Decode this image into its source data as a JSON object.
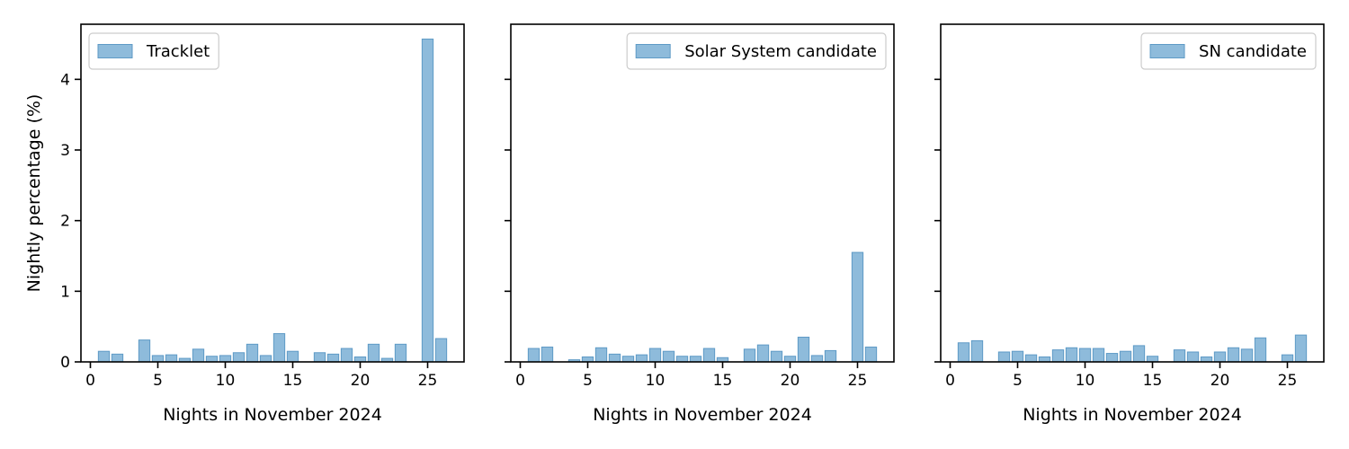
{
  "chart_data": [
    {
      "type": "bar",
      "xlabel": "Nights in November 2024",
      "ylabel": "Nightly percentage (%)",
      "xlim": [
        -0.7,
        27.7
      ],
      "ylim": [
        0,
        4.78
      ],
      "xticks": [
        0,
        5,
        10,
        15,
        20,
        25
      ],
      "yticks": [
        0,
        1,
        2,
        3,
        4
      ],
      "legend": "top-left",
      "color": "#8ebbdb",
      "edge_color": "#5e9ac6",
      "series": [
        {
          "name": "Tracklet",
          "x": [
            1,
            2,
            4,
            5,
            6,
            7,
            8,
            9,
            10,
            11,
            12,
            13,
            14,
            15,
            17,
            18,
            19,
            20,
            21,
            22,
            23,
            25,
            26
          ],
          "values": [
            0.15,
            0.11,
            0.31,
            0.09,
            0.1,
            0.05,
            0.18,
            0.08,
            0.09,
            0.13,
            0.25,
            0.09,
            0.4,
            0.15,
            0.13,
            0.11,
            0.19,
            0.07,
            0.25,
            0.05,
            0.25,
            4.57,
            0.33
          ]
        }
      ]
    },
    {
      "type": "bar",
      "xlabel": "Nights in November 2024",
      "ylabel": "",
      "xlim": [
        -0.7,
        27.7
      ],
      "ylim": [
        0,
        4.78
      ],
      "xticks": [
        0,
        5,
        10,
        15,
        20,
        25
      ],
      "yticks": [
        0,
        1,
        2,
        3,
        4
      ],
      "legend": "top-right",
      "color": "#8ebbdb",
      "edge_color": "#5e9ac6",
      "series": [
        {
          "name": "Solar System candidate",
          "x": [
            1,
            2,
            4,
            5,
            6,
            7,
            8,
            9,
            10,
            11,
            12,
            13,
            14,
            15,
            17,
            18,
            19,
            20,
            21,
            22,
            23,
            25,
            26
          ],
          "values": [
            0.19,
            0.21,
            0.03,
            0.07,
            0.2,
            0.11,
            0.08,
            0.1,
            0.19,
            0.15,
            0.08,
            0.08,
            0.19,
            0.06,
            0.18,
            0.24,
            0.15,
            0.08,
            0.35,
            0.09,
            0.16,
            1.55,
            0.21
          ]
        }
      ]
    },
    {
      "type": "bar",
      "xlabel": "Nights in November 2024",
      "ylabel": "",
      "xlim": [
        -0.7,
        27.7
      ],
      "ylim": [
        0,
        4.78
      ],
      "xticks": [
        0,
        5,
        10,
        15,
        20,
        25
      ],
      "yticks": [
        0,
        1,
        2,
        3,
        4
      ],
      "legend": "top-right",
      "color": "#8ebbdb",
      "edge_color": "#5e9ac6",
      "series": [
        {
          "name": "SN candidate",
          "x": [
            1,
            2,
            4,
            5,
            6,
            7,
            8,
            9,
            10,
            11,
            12,
            13,
            14,
            15,
            17,
            18,
            19,
            20,
            21,
            22,
            23,
            25,
            26
          ],
          "values": [
            0.27,
            0.3,
            0.14,
            0.15,
            0.1,
            0.07,
            0.17,
            0.2,
            0.19,
            0.19,
            0.12,
            0.15,
            0.23,
            0.08,
            0.17,
            0.14,
            0.07,
            0.14,
            0.2,
            0.18,
            0.34,
            0.1,
            0.38
          ]
        }
      ]
    }
  ]
}
